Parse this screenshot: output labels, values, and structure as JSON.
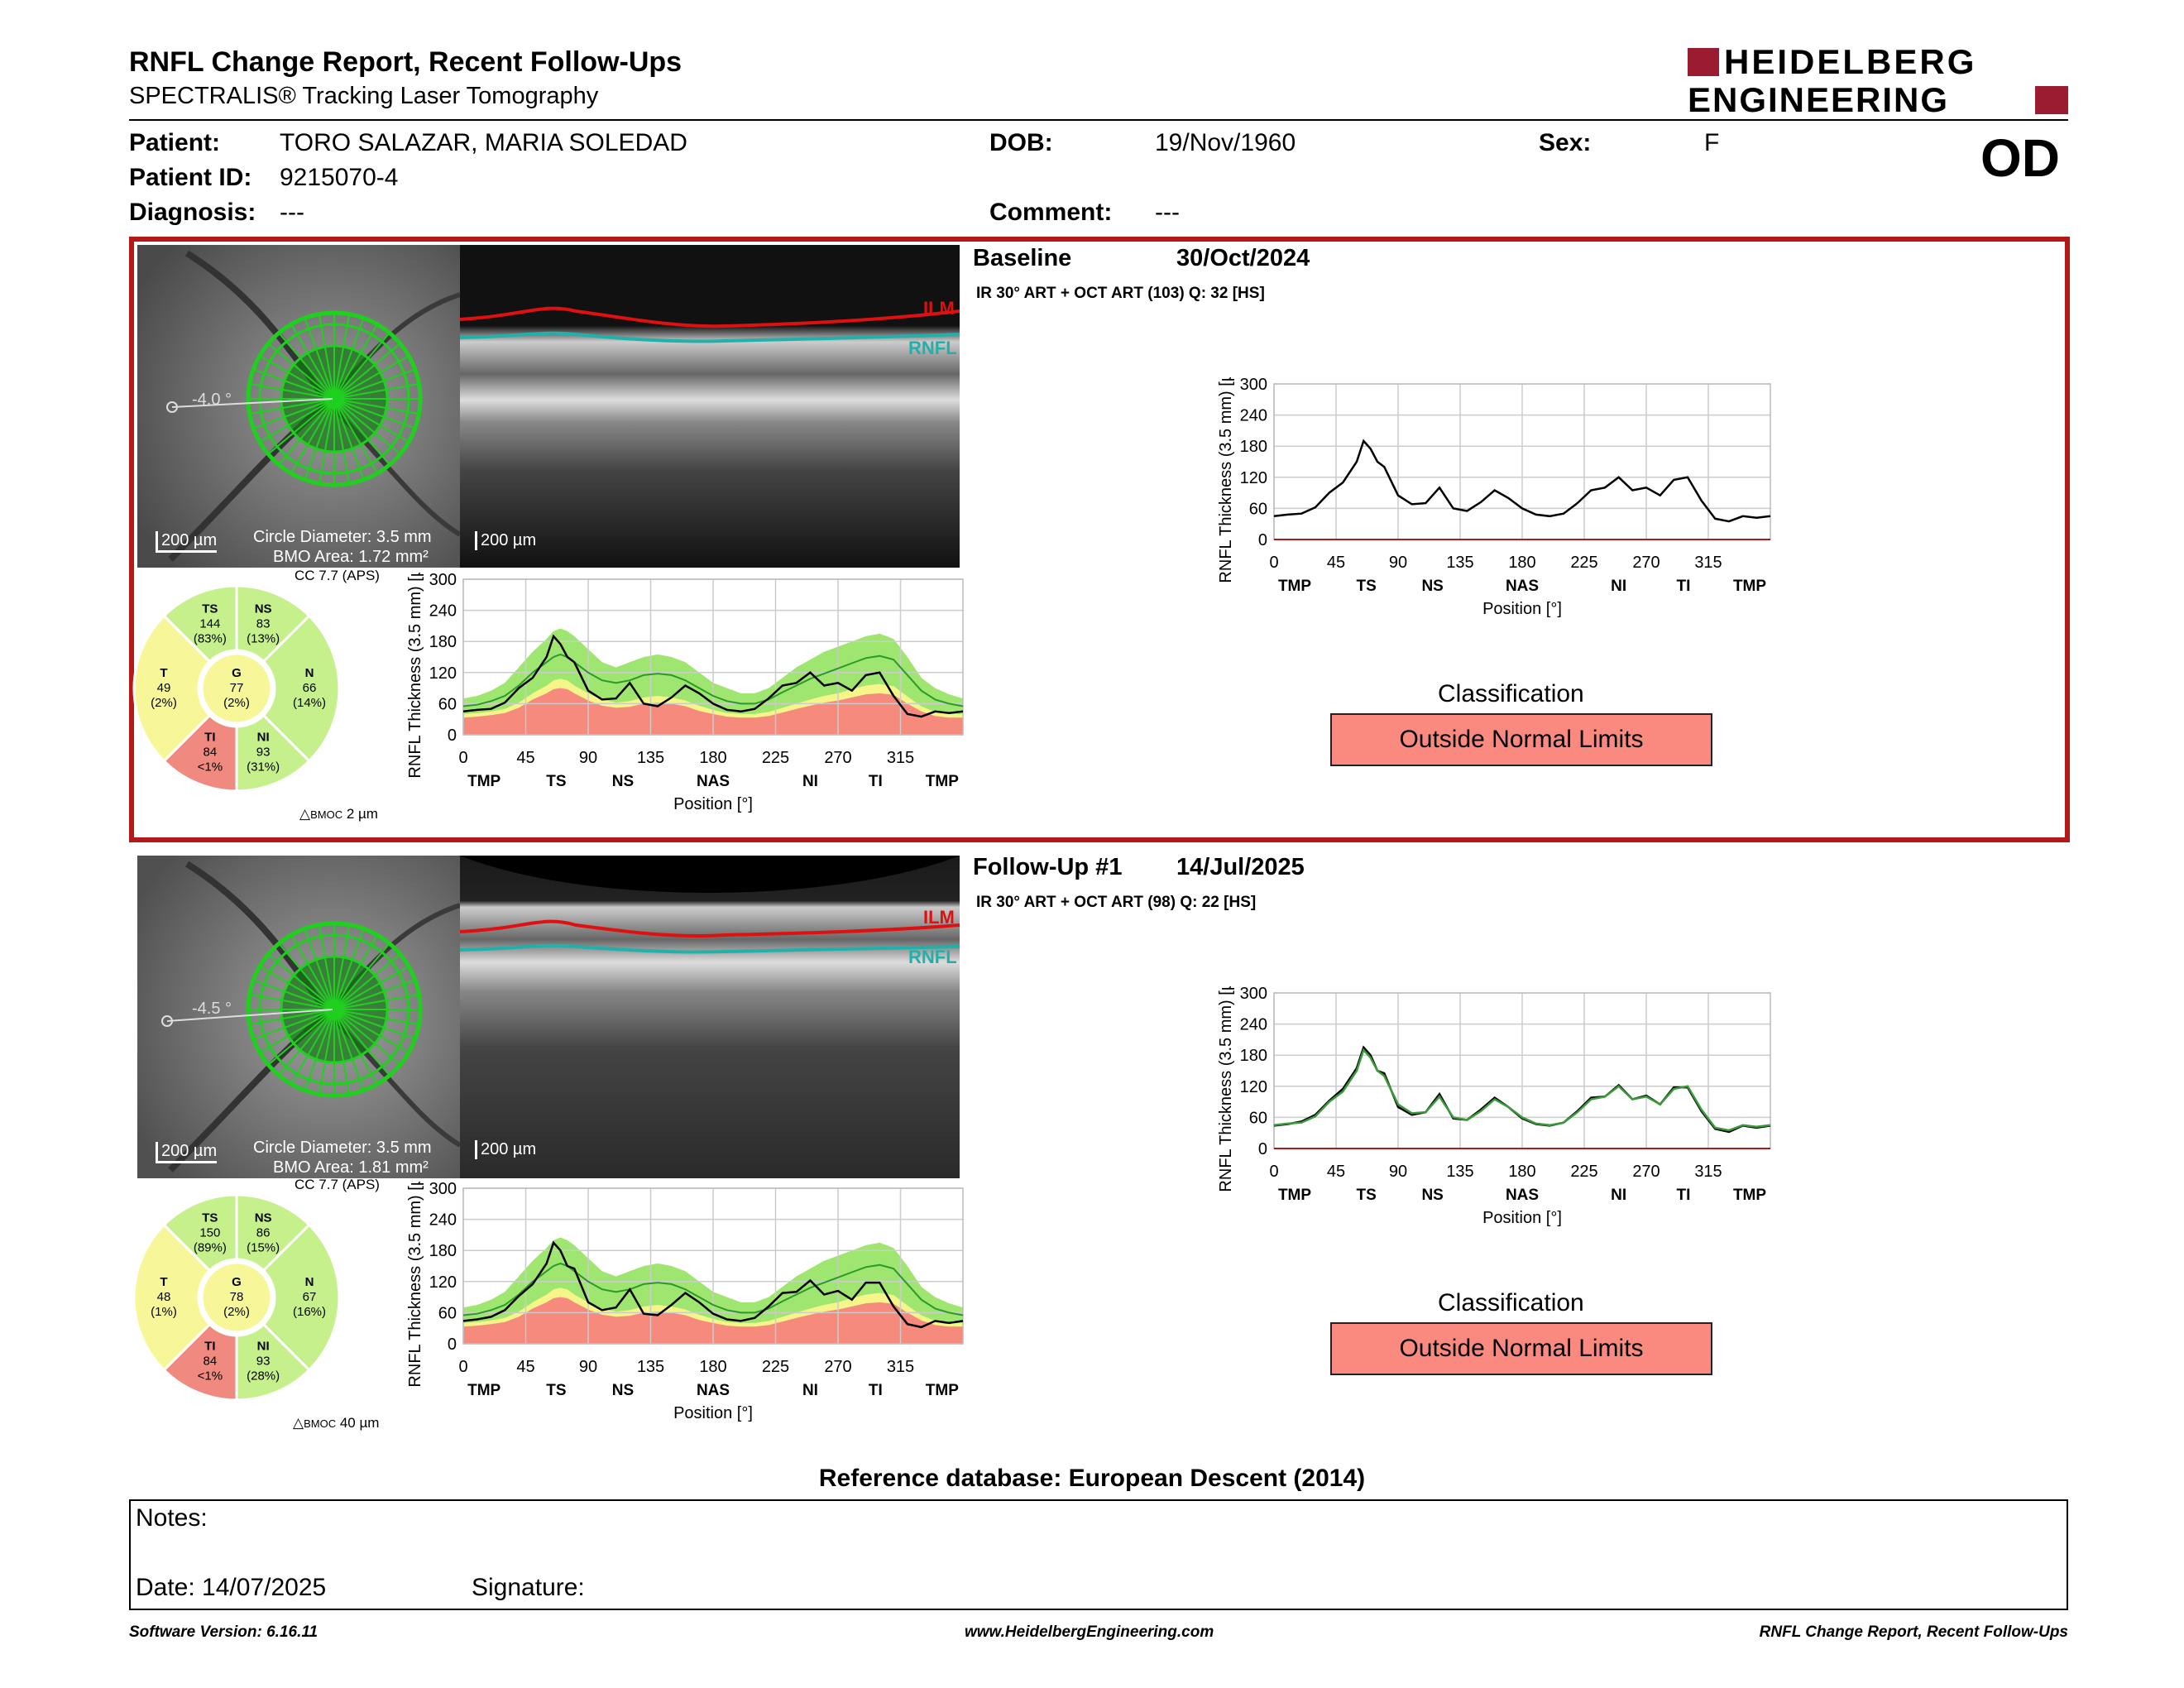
{
  "header": {
    "title": "RNFL Change Report, Recent Follow-Ups",
    "subtitle": "SPECTRALIS® Tracking Laser Tomography",
    "logo_line1": "HEIDELBERG",
    "logo_line2": "ENGINEERING",
    "eye": "OD"
  },
  "patient": {
    "patient_label": "Patient:",
    "patient_name": "TORO SALAZAR, MARIA SOLEDAD",
    "dob_label": "DOB:",
    "dob": "19/Nov/1960",
    "sex_label": "Sex:",
    "sex": "F",
    "id_label": "Patient ID:",
    "id": "9215070-4",
    "diagnosis_label": "Diagnosis:",
    "diagnosis": "---",
    "comment_label": "Comment:",
    "comment": "---"
  },
  "colors": {
    "panel_border": "#b31919",
    "green_band": "#9ee66f",
    "yellow_band": "#f5f58a",
    "red_band": "#f58a7d",
    "classification_fill": "#fa8a7f",
    "ilm": "#e01010",
    "rnfl": "#20b2aa"
  },
  "exams": [
    {
      "title": "Baseline",
      "date": "30/Oct/2024",
      "scan_info": "IR 30° ART + OCT ART (103) Q: 32 [HS]",
      "angle": "-4.0 °",
      "scale_fundus": "200 µm",
      "scale_oct": "200 µm",
      "circle_diameter": "Circle Diameter: 3.5 mm",
      "bmo_area": "BMO Area: 1.72 mm²",
      "cc": "CC 7.7 (APS)",
      "delta_bmoc_label": "BMOC",
      "delta_bmoc_value": "2 µm",
      "ilm_label": "ILM",
      "rnfl_label": "RNFL",
      "sectors": {
        "TS": {
          "label": "TS",
          "value": "144",
          "pct": "(83%)",
          "color": "#c6f08c"
        },
        "NS": {
          "label": "NS",
          "value": "83",
          "pct": "(13%)",
          "color": "#c6f08c"
        },
        "N": {
          "label": "N",
          "value": "66",
          "pct": "(14%)",
          "color": "#c6f08c"
        },
        "NI": {
          "label": "NI",
          "value": "93",
          "pct": "(31%)",
          "color": "#c6f08c"
        },
        "TI": {
          "label": "TI",
          "value": "84",
          "pct": "<1%",
          "color": "#f08a80"
        },
        "T": {
          "label": "T",
          "value": "49",
          "pct": "(2%)",
          "color": "#f7f79a"
        },
        "G": {
          "label": "G",
          "value": "77",
          "pct": "(2%)",
          "color": "#f7f79a"
        }
      },
      "classification_title": "Classification",
      "classification": "Outside Normal Limits"
    },
    {
      "title": "Follow-Up #1",
      "date": "14/Jul/2025",
      "scan_info": "IR 30° ART + OCT ART (98) Q: 22 [HS]",
      "angle": "-4.5 °",
      "scale_fundus": "200 µm",
      "scale_oct": "200 µm",
      "circle_diameter": "Circle Diameter: 3.5 mm",
      "bmo_area": "BMO Area: 1.81 mm²",
      "cc": "CC 7.7 (APS)",
      "delta_bmoc_label": "BMOC",
      "delta_bmoc_value": "40 µm",
      "ilm_label": "ILM",
      "rnfl_label": "RNFL",
      "sectors": {
        "TS": {
          "label": "TS",
          "value": "150",
          "pct": "(89%)",
          "color": "#c6f08c"
        },
        "NS": {
          "label": "NS",
          "value": "86",
          "pct": "(15%)",
          "color": "#c6f08c"
        },
        "N": {
          "label": "N",
          "value": "67",
          "pct": "(16%)",
          "color": "#c6f08c"
        },
        "NI": {
          "label": "NI",
          "value": "93",
          "pct": "(28%)",
          "color": "#c6f08c"
        },
        "TI": {
          "label": "TI",
          "value": "84",
          "pct": "<1%",
          "color": "#f08a80"
        },
        "T": {
          "label": "T",
          "value": "48",
          "pct": "(1%)",
          "color": "#f7f79a"
        },
        "G": {
          "label": "G",
          "value": "78",
          "pct": "(2%)",
          "color": "#f7f79a"
        }
      },
      "classification_title": "Classification",
      "classification": "Outside Normal Limits"
    }
  ],
  "chart_data": [
    {
      "type": "line",
      "chart": "baseline-normative",
      "xlabel": "Position [°]",
      "ylabel": "RNFL Thickness (3.5 mm) [µm]",
      "xlim": [
        0,
        360
      ],
      "ylim": [
        0,
        300
      ],
      "xticks": [
        0,
        45,
        90,
        135,
        180,
        225,
        270,
        315
      ],
      "yticks": [
        0,
        60,
        120,
        180,
        240,
        300
      ],
      "sector_ticks": [
        "TMP",
        "TS",
        "NS",
        "NAS",
        "NI",
        "TI",
        "TMP"
      ],
      "x": [
        0,
        10,
        20,
        30,
        40,
        50,
        60,
        65,
        70,
        75,
        80,
        90,
        100,
        110,
        120,
        130,
        140,
        150,
        160,
        170,
        180,
        190,
        200,
        210,
        220,
        230,
        240,
        250,
        260,
        270,
        280,
        290,
        300,
        310,
        320,
        330,
        340,
        350,
        360
      ],
      "series": [
        {
          "values": [
            45,
            48,
            50,
            62,
            90,
            110,
            150,
            190,
            175,
            150,
            140,
            85,
            68,
            70,
            100,
            60,
            55,
            72,
            95,
            80,
            60,
            48,
            45,
            50,
            70,
            95,
            100,
            120,
            95,
            100,
            85,
            115,
            120,
            75,
            40,
            35,
            45,
            42,
            45
          ]
        }
      ],
      "norm_green_upper": [
        70,
        75,
        85,
        100,
        130,
        160,
        185,
        200,
        205,
        200,
        190,
        165,
        140,
        130,
        140,
        150,
        155,
        150,
        140,
        120,
        100,
        90,
        80,
        80,
        90,
        110,
        130,
        145,
        160,
        170,
        180,
        190,
        195,
        185,
        150,
        110,
        90,
        78,
        70
      ],
      "norm_median": [
        55,
        58,
        65,
        75,
        95,
        120,
        140,
        150,
        155,
        150,
        140,
        120,
        105,
        100,
        105,
        115,
        118,
        115,
        105,
        90,
        75,
        65,
        60,
        60,
        68,
        82,
        95,
        108,
        118,
        128,
        138,
        148,
        152,
        145,
        115,
        85,
        68,
        60,
        55
      ],
      "norm_yellow_upper": [
        40,
        42,
        45,
        50,
        62,
        80,
        95,
        105,
        108,
        105,
        95,
        80,
        68,
        62,
        65,
        72,
        75,
        72,
        66,
        56,
        48,
        42,
        40,
        40,
        44,
        52,
        60,
        68,
        75,
        80,
        88,
        95,
        98,
        94,
        74,
        55,
        44,
        40,
        40
      ],
      "norm_red_upper": [
        33,
        35,
        38,
        42,
        52,
        68,
        80,
        88,
        90,
        88,
        80,
        66,
        56,
        52,
        54,
        60,
        62,
        60,
        55,
        46,
        40,
        35,
        33,
        33,
        36,
        43,
        50,
        56,
        62,
        66,
        72,
        78,
        80,
        77,
        60,
        45,
        36,
        33,
        33
      ]
    },
    {
      "type": "line",
      "chart": "baseline-trend",
      "xlabel": "Position [°]",
      "ylabel": "RNFL Thickness (3.5 mm) [µm]",
      "xlim": [
        0,
        360
      ],
      "ylim": [
        0,
        300
      ],
      "xticks": [
        0,
        45,
        90,
        135,
        180,
        225,
        270,
        315
      ],
      "yticks": [
        0,
        60,
        120,
        180,
        240,
        300
      ],
      "sector_ticks": [
        "TMP",
        "TS",
        "NS",
        "NAS",
        "NI",
        "TI",
        "TMP"
      ],
      "x": [
        0,
        10,
        20,
        30,
        40,
        50,
        60,
        65,
        70,
        75,
        80,
        90,
        100,
        110,
        120,
        130,
        140,
        150,
        160,
        170,
        180,
        190,
        200,
        210,
        220,
        230,
        240,
        250,
        260,
        270,
        280,
        290,
        300,
        310,
        320,
        330,
        340,
        350,
        360
      ],
      "series": [
        {
          "name": "",
          "values": [
            45,
            48,
            50,
            62,
            90,
            110,
            150,
            190,
            175,
            150,
            140,
            85,
            68,
            70,
            100,
            60,
            55,
            72,
            95,
            80,
            60,
            48,
            45,
            50,
            70,
            95,
            100,
            120,
            95,
            100,
            85,
            115,
            120,
            75,
            40,
            35,
            45,
            42,
            45
          ]
        }
      ]
    },
    {
      "type": "line",
      "chart": "followup-normative",
      "xlabel": "Position [°]",
      "ylabel": "RNFL Thickness (3.5 mm) [µm]",
      "xlim": [
        0,
        360
      ],
      "ylim": [
        0,
        300
      ],
      "xticks": [
        0,
        45,
        90,
        135,
        180,
        225,
        270,
        315
      ],
      "yticks": [
        0,
        60,
        120,
        180,
        240,
        300
      ],
      "sector_ticks": [
        "TMP",
        "TS",
        "NS",
        "NAS",
        "NI",
        "TI",
        "TMP"
      ],
      "x": [
        0,
        10,
        20,
        30,
        40,
        50,
        60,
        65,
        70,
        75,
        80,
        90,
        100,
        110,
        120,
        130,
        140,
        150,
        160,
        170,
        180,
        190,
        200,
        210,
        220,
        230,
        240,
        250,
        260,
        270,
        280,
        290,
        300,
        310,
        320,
        330,
        340,
        350,
        360
      ],
      "series": [
        {
          "values": [
            44,
            47,
            52,
            65,
            92,
            115,
            155,
            195,
            180,
            150,
            145,
            80,
            65,
            70,
            105,
            58,
            55,
            75,
            98,
            80,
            58,
            47,
            44,
            50,
            72,
            98,
            100,
            122,
            95,
            102,
            85,
            118,
            118,
            72,
            38,
            32,
            44,
            40,
            44
          ]
        }
      ],
      "norm_green_upper": [
        70,
        75,
        85,
        100,
        130,
        160,
        185,
        200,
        205,
        200,
        190,
        165,
        140,
        130,
        140,
        150,
        155,
        150,
        140,
        120,
        100,
        90,
        80,
        80,
        90,
        110,
        130,
        145,
        160,
        170,
        180,
        190,
        195,
        185,
        150,
        110,
        90,
        78,
        70
      ],
      "norm_median": [
        55,
        58,
        65,
        75,
        95,
        120,
        140,
        150,
        155,
        150,
        140,
        120,
        105,
        100,
        105,
        115,
        118,
        115,
        105,
        90,
        75,
        65,
        60,
        60,
        68,
        82,
        95,
        108,
        118,
        128,
        138,
        148,
        152,
        145,
        115,
        85,
        68,
        60,
        55
      ],
      "norm_yellow_upper": [
        40,
        42,
        45,
        50,
        62,
        80,
        95,
        105,
        108,
        105,
        95,
        80,
        68,
        62,
        65,
        72,
        75,
        72,
        66,
        56,
        48,
        42,
        40,
        40,
        44,
        52,
        60,
        68,
        75,
        80,
        88,
        95,
        98,
        94,
        74,
        55,
        44,
        40,
        40
      ],
      "norm_red_upper": [
        33,
        35,
        38,
        42,
        52,
        68,
        80,
        88,
        90,
        88,
        80,
        66,
        56,
        52,
        54,
        60,
        62,
        60,
        55,
        46,
        40,
        35,
        33,
        33,
        36,
        43,
        50,
        56,
        62,
        66,
        72,
        78,
        80,
        77,
        60,
        45,
        36,
        33,
        33
      ]
    },
    {
      "type": "line",
      "chart": "followup-trend",
      "xlabel": "Position [°]",
      "ylabel": "RNFL Thickness (3.5 mm) [µm]",
      "xlim": [
        0,
        360
      ],
      "ylim": [
        0,
        300
      ],
      "xticks": [
        0,
        45,
        90,
        135,
        180,
        225,
        270,
        315
      ],
      "yticks": [
        0,
        60,
        120,
        180,
        240,
        300
      ],
      "sector_ticks": [
        "TMP",
        "TS",
        "NS",
        "NAS",
        "NI",
        "TI",
        "TMP"
      ],
      "x": [
        0,
        10,
        20,
        30,
        40,
        50,
        60,
        65,
        70,
        75,
        80,
        90,
        100,
        110,
        120,
        130,
        140,
        150,
        160,
        170,
        180,
        190,
        200,
        210,
        220,
        230,
        240,
        250,
        260,
        270,
        280,
        290,
        300,
        310,
        320,
        330,
        340,
        350,
        360
      ],
      "series": [
        {
          "name": "",
          "values": [
            44,
            47,
            52,
            65,
            92,
            115,
            155,
            195,
            180,
            150,
            145,
            80,
            65,
            70,
            105,
            58,
            55,
            75,
            98,
            80,
            58,
            47,
            44,
            50,
            72,
            98,
            100,
            122,
            95,
            102,
            85,
            118,
            118,
            72,
            38,
            32,
            44,
            40,
            44
          ]
        },
        {
          "name": "",
          "values": [
            45,
            48,
            50,
            62,
            90,
            110,
            150,
            190,
            175,
            150,
            140,
            85,
            68,
            70,
            100,
            60,
            55,
            72,
            95,
            80,
            60,
            48,
            45,
            50,
            70,
            95,
            100,
            120,
            95,
            100,
            85,
            115,
            120,
            75,
            40,
            35,
            45,
            42,
            45
          ]
        }
      ]
    }
  ],
  "reference_db": "Reference database: European Descent (2014)",
  "notes": {
    "notes_label": "Notes:",
    "date_label": "Date: 14/07/2025",
    "signature_label": "Signature:"
  },
  "footer": {
    "software": "Software Version: 6.16.11",
    "website": "www.HeidelbergEngineering.com",
    "report_name": "RNFL Change Report, Recent Follow-Ups"
  }
}
